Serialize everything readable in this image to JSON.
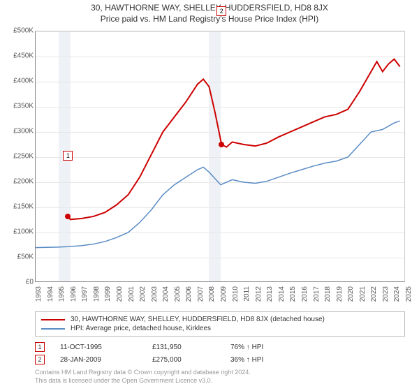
{
  "title": "30, HAWTHORNE WAY, SHELLEY, HUDDERSFIELD, HD8 8JX",
  "subtitle": "Price paid vs. HM Land Registry's House Price Index (HPI)",
  "chart": {
    "type": "line",
    "background_color": "#ffffff",
    "grid_color": "#e6e6e6",
    "axis_color": "#888888",
    "x_years": [
      1993,
      1994,
      1995,
      1996,
      1997,
      1998,
      1999,
      2000,
      2001,
      2002,
      2003,
      2004,
      2005,
      2006,
      2007,
      2008,
      2009,
      2010,
      2011,
      2012,
      2013,
      2014,
      2015,
      2016,
      2017,
      2018,
      2019,
      2020,
      2021,
      2022,
      2023,
      2024,
      2025
    ],
    "y_ticks": [
      0,
      50000,
      100000,
      150000,
      200000,
      250000,
      300000,
      350000,
      400000,
      450000,
      500000
    ],
    "y_tick_labels": [
      "£0",
      "£50K",
      "£100K",
      "£150K",
      "£200K",
      "£250K",
      "£300K",
      "£350K",
      "£400K",
      "£450K",
      "£500K"
    ],
    "ylim": [
      0,
      500000
    ],
    "xlim": [
      1993,
      2025
    ],
    "shaded_regions": [
      {
        "from": 1995,
        "to": 1996,
        "color": "#eef2f6"
      },
      {
        "from": 2008,
        "to": 2009,
        "color": "#eef2f6"
      }
    ],
    "series": [
      {
        "name": "price_paid",
        "label": "30, HAWTHORNE WAY, SHELLEY, HUDDERSFIELD, HD8 8JX (detached house)",
        "color": "#cc0000",
        "line_width": 2,
        "points": [
          [
            1995.8,
            131950
          ],
          [
            1996,
            126000
          ],
          [
            1997,
            128000
          ],
          [
            1998,
            132000
          ],
          [
            1999,
            140000
          ],
          [
            2000,
            155000
          ],
          [
            2001,
            175000
          ],
          [
            2002,
            210000
          ],
          [
            2003,
            255000
          ],
          [
            2004,
            300000
          ],
          [
            2005,
            330000
          ],
          [
            2006,
            360000
          ],
          [
            2007,
            395000
          ],
          [
            2007.5,
            405000
          ],
          [
            2008,
            390000
          ],
          [
            2008.5,
            340000
          ],
          [
            2009.08,
            275000
          ],
          [
            2009.5,
            270000
          ],
          [
            2010,
            280000
          ],
          [
            2011,
            275000
          ],
          [
            2012,
            272000
          ],
          [
            2013,
            278000
          ],
          [
            2014,
            290000
          ],
          [
            2015,
            300000
          ],
          [
            2016,
            310000
          ],
          [
            2017,
            320000
          ],
          [
            2018,
            330000
          ],
          [
            2019,
            335000
          ],
          [
            2020,
            345000
          ],
          [
            2021,
            380000
          ],
          [
            2022,
            420000
          ],
          [
            2022.5,
            440000
          ],
          [
            2023,
            420000
          ],
          [
            2023.5,
            435000
          ],
          [
            2024,
            445000
          ],
          [
            2024.5,
            430000
          ]
        ]
      },
      {
        "name": "hpi",
        "label": "HPI: Average price, detached house, Kirklees",
        "color": "#5b8cc5",
        "line_width": 1.5,
        "points": [
          [
            1993,
            70000
          ],
          [
            1994,
            70500
          ],
          [
            1995,
            71000
          ],
          [
            1996,
            72000
          ],
          [
            1997,
            74000
          ],
          [
            1998,
            77000
          ],
          [
            1999,
            82000
          ],
          [
            2000,
            90000
          ],
          [
            2001,
            100000
          ],
          [
            2002,
            120000
          ],
          [
            2003,
            145000
          ],
          [
            2004,
            175000
          ],
          [
            2005,
            195000
          ],
          [
            2006,
            210000
          ],
          [
            2007,
            225000
          ],
          [
            2007.5,
            230000
          ],
          [
            2008,
            220000
          ],
          [
            2009,
            195000
          ],
          [
            2010,
            205000
          ],
          [
            2011,
            200000
          ],
          [
            2012,
            198000
          ],
          [
            2013,
            202000
          ],
          [
            2014,
            210000
          ],
          [
            2015,
            218000
          ],
          [
            2016,
            225000
          ],
          [
            2017,
            232000
          ],
          [
            2018,
            238000
          ],
          [
            2019,
            242000
          ],
          [
            2020,
            250000
          ],
          [
            2021,
            275000
          ],
          [
            2022,
            300000
          ],
          [
            2023,
            305000
          ],
          [
            2024,
            318000
          ],
          [
            2024.5,
            322000
          ]
        ]
      }
    ],
    "markers": [
      {
        "id": "1",
        "year": 1995.8,
        "value": 131950,
        "color": "#cc0000",
        "label_y_offset": -94
      },
      {
        "id": "2",
        "year": 2009.08,
        "value": 275000,
        "color": "#cc0000",
        "label_y_offset": -198
      }
    ]
  },
  "legend": {
    "items": [
      {
        "color": "#cc0000",
        "label": "30, HAWTHORNE WAY, SHELLEY, HUDDERSFIELD, HD8 8JX (detached house)"
      },
      {
        "color": "#5b8cc5",
        "label": "HPI: Average price, detached house, Kirklees"
      }
    ]
  },
  "marker_table": [
    {
      "id": "1",
      "color": "#cc0000",
      "date": "11-OCT-1995",
      "price": "£131,950",
      "delta": "76% ↑ HPI"
    },
    {
      "id": "2",
      "color": "#cc0000",
      "date": "28-JAN-2009",
      "price": "£275,000",
      "delta": "36% ↑ HPI"
    }
  ],
  "attribution": {
    "line1": "Contains HM Land Registry data © Crown copyright and database right 2024.",
    "line2": "This data is licensed under the Open Government Licence v3.0."
  }
}
